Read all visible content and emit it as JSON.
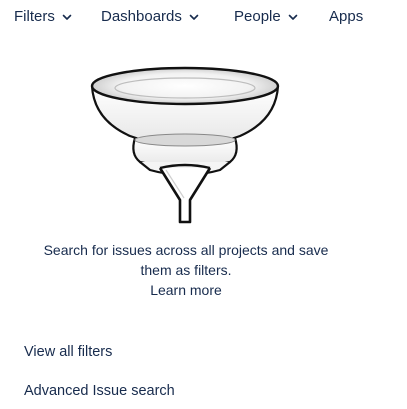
{
  "nav": {
    "items": [
      {
        "label": "Filters",
        "icon": "chevron-down-icon"
      },
      {
        "label": "Dashboards",
        "icon": "chevron-down-icon"
      },
      {
        "label": "People",
        "icon": "chevron-down-icon"
      },
      {
        "label": "Apps"
      }
    ]
  },
  "empty_state": {
    "illustration": "funnel-icon",
    "line1": "Search for issues across all projects and save",
    "line2": "them as filters.",
    "learn_more": "Learn more"
  },
  "links": {
    "view_all_filters": "View all filters",
    "advanced_issue_search": "Advanced Issue search"
  },
  "colors": {
    "text": "#172b4d",
    "background": "#ffffff"
  }
}
